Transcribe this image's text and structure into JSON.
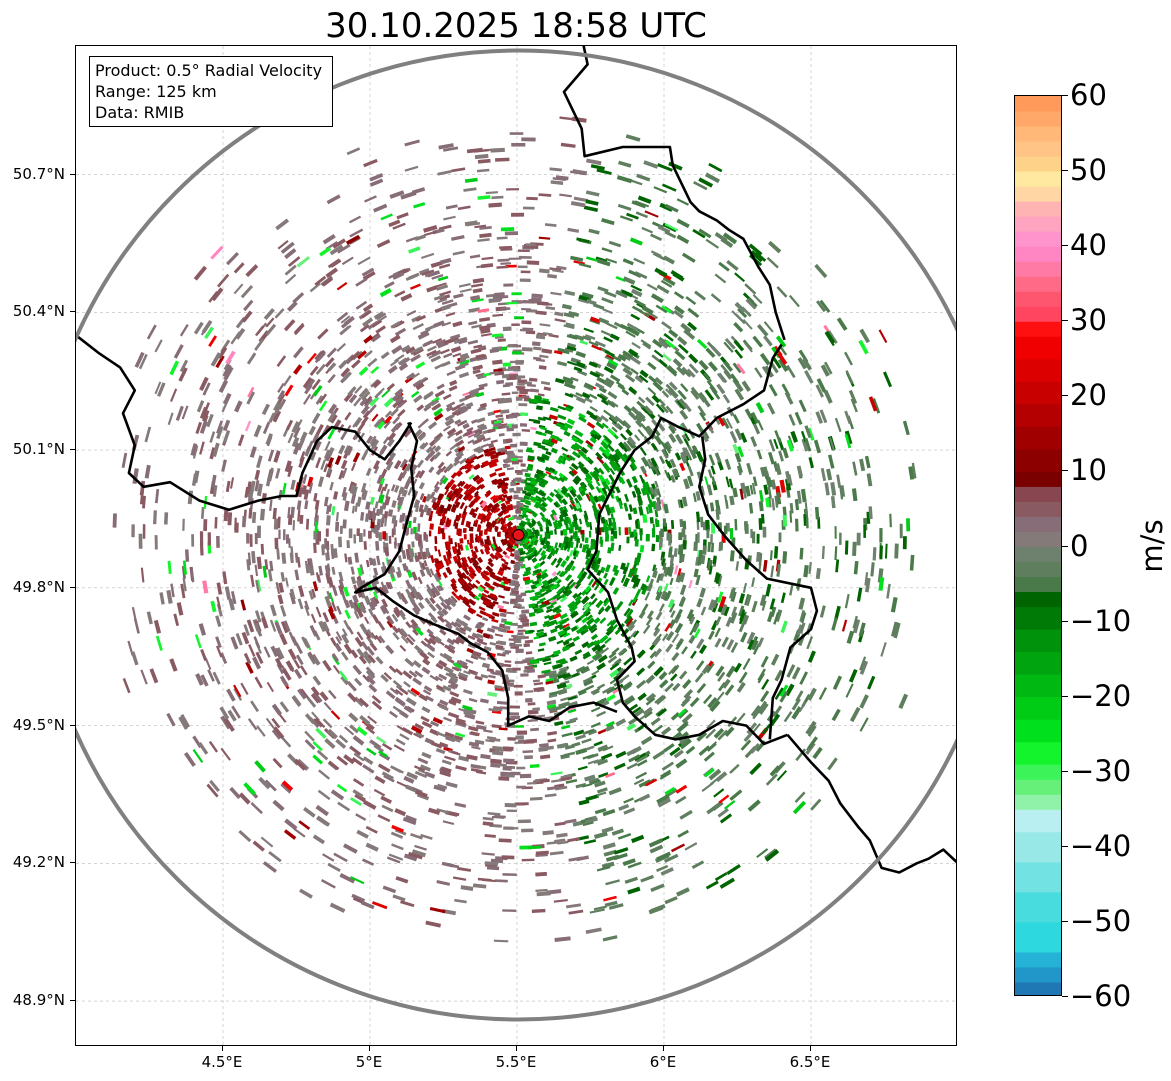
{
  "title": "30.10.2025 18:58 UTC",
  "info_box": {
    "product": "Product: 0.5° Radial Velocity",
    "range": "Range: 125 km",
    "data_source": "Data: RMIB"
  },
  "axes": {
    "lon_range": [
      4.0,
      7.0
    ],
    "lat_range": [
      48.8,
      50.98
    ],
    "lat_ticks": [
      {
        "value": 50.7,
        "label": "50.7°N"
      },
      {
        "value": 50.4,
        "label": "50.4°N"
      },
      {
        "value": 50.1,
        "label": "50.1°N"
      },
      {
        "value": 49.8,
        "label": "49.8°N"
      },
      {
        "value": 49.5,
        "label": "49.5°N"
      },
      {
        "value": 49.2,
        "label": "49.2°N"
      },
      {
        "value": 48.9,
        "label": "48.9°N"
      }
    ],
    "lon_ticks": [
      {
        "value": 4.5,
        "label": "4.5°E"
      },
      {
        "value": 5.0,
        "label": "5°E"
      },
      {
        "value": 5.5,
        "label": "5.5°E"
      },
      {
        "value": 6.0,
        "label": "6°E"
      },
      {
        "value": 6.5,
        "label": "6.5°E"
      }
    ]
  },
  "radar_site": {
    "lon": 5.505,
    "lat": 49.915,
    "color": "#e8141c"
  },
  "range_ring_color": "#808080",
  "colorbar": {
    "label": "m/s",
    "min": -60,
    "max": 60,
    "ticks": [
      {
        "value": 60,
        "label": "60"
      },
      {
        "value": 50,
        "label": "50"
      },
      {
        "value": 40,
        "label": "40"
      },
      {
        "value": 30,
        "label": "30"
      },
      {
        "value": 20,
        "label": "20"
      },
      {
        "value": 10,
        "label": "10"
      },
      {
        "value": 0,
        "label": "0"
      },
      {
        "value": -10,
        "label": "−10"
      },
      {
        "value": -20,
        "label": "−20"
      },
      {
        "value": -30,
        "label": "−30"
      },
      {
        "value": -40,
        "label": "−40"
      },
      {
        "value": -50,
        "label": "−50"
      },
      {
        "value": -60,
        "label": "−60"
      }
    ],
    "stops": [
      {
        "from": -60,
        "to": -58,
        "color": "#1f77b4"
      },
      {
        "from": -58,
        "to": -56,
        "color": "#2196c8"
      },
      {
        "from": -56,
        "to": -54,
        "color": "#24b2d6"
      },
      {
        "from": -54,
        "to": -50,
        "color": "#2dd9de"
      },
      {
        "from": -50,
        "to": -46,
        "color": "#48dcdf"
      },
      {
        "from": -46,
        "to": -42,
        "color": "#72e2e2"
      },
      {
        "from": -42,
        "to": -38,
        "color": "#98e8e8"
      },
      {
        "from": -38,
        "to": -35,
        "color": "#b9eff0"
      },
      {
        "from": -35,
        "to": -33,
        "color": "#8ff2a8"
      },
      {
        "from": -33,
        "to": -31,
        "color": "#66f07a"
      },
      {
        "from": -31,
        "to": -29,
        "color": "#3cf45a"
      },
      {
        "from": -29,
        "to": -26,
        "color": "#14f42c"
      },
      {
        "from": -26,
        "to": -23,
        "color": "#00e01c"
      },
      {
        "from": -23,
        "to": -20,
        "color": "#00cc16"
      },
      {
        "from": -20,
        "to": -17,
        "color": "#00b812"
      },
      {
        "from": -17,
        "to": -14,
        "color": "#00a40e"
      },
      {
        "from": -14,
        "to": -11,
        "color": "#00920a"
      },
      {
        "from": -11,
        "to": -8,
        "color": "#007a06"
      },
      {
        "from": -8,
        "to": -6,
        "color": "#006400"
      },
      {
        "from": -6,
        "to": -4,
        "color": "#4a7a4a"
      },
      {
        "from": -4,
        "to": -2,
        "color": "#5e7e5e"
      },
      {
        "from": -2,
        "to": 0,
        "color": "#6e806e"
      },
      {
        "from": 0,
        "to": 2,
        "color": "#857a7a"
      },
      {
        "from": 2,
        "to": 4,
        "color": "#866d77"
      },
      {
        "from": 4,
        "to": 6,
        "color": "#8a5a62"
      },
      {
        "from": 6,
        "to": 8,
        "color": "#884750"
      },
      {
        "from": 8,
        "to": 10,
        "color": "#7a0000"
      },
      {
        "from": 10,
        "to": 13,
        "color": "#8c0000"
      },
      {
        "from": 13,
        "to": 16,
        "color": "#a00000"
      },
      {
        "from": 16,
        "to": 19,
        "color": "#b40000"
      },
      {
        "from": 19,
        "to": 22,
        "color": "#c80000"
      },
      {
        "from": 22,
        "to": 25,
        "color": "#dc0000"
      },
      {
        "from": 25,
        "to": 28,
        "color": "#f00000"
      },
      {
        "from": 28,
        "to": 30,
        "color": "#ff1010"
      },
      {
        "from": 30,
        "to": 32,
        "color": "#ff4560"
      },
      {
        "from": 32,
        "to": 34,
        "color": "#ff5670"
      },
      {
        "from": 34,
        "to": 36,
        "color": "#ff6a86"
      },
      {
        "from": 36,
        "to": 38,
        "color": "#ff7aa4"
      },
      {
        "from": 38,
        "to": 40,
        "color": "#ff86c2"
      },
      {
        "from": 40,
        "to": 42,
        "color": "#ff94cc"
      },
      {
        "from": 42,
        "to": 44,
        "color": "#ffa4c0"
      },
      {
        "from": 44,
        "to": 46,
        "color": "#ffb4b4"
      },
      {
        "from": 46,
        "to": 48,
        "color": "#ffd6a4"
      },
      {
        "from": 48,
        "to": 50,
        "color": "#ffe8a0"
      },
      {
        "from": 50,
        "to": 52,
        "color": "#ffd28a"
      },
      {
        "from": 52,
        "to": 54,
        "color": "#ffc486"
      },
      {
        "from": 54,
        "to": 56,
        "color": "#ffb878"
      },
      {
        "from": 56,
        "to": 58,
        "color": "#ffa86a"
      },
      {
        "from": 58,
        "to": 60,
        "color": "#ff9a5a"
      }
    ]
  },
  "borders": [
    {
      "name": "belgium-luxembourg-border",
      "points": [
        [
          5.13,
          50.16
        ],
        [
          5.16,
          50.12
        ],
        [
          5.14,
          50.06
        ],
        [
          5.15,
          50.0
        ],
        [
          5.12,
          49.93
        ],
        [
          5.1,
          49.88
        ],
        [
          5.05,
          49.83
        ],
        [
          4.97,
          49.8
        ],
        [
          4.95,
          49.79
        ],
        [
          5.02,
          49.8
        ],
        [
          5.08,
          49.77
        ],
        [
          5.15,
          49.74
        ],
        [
          5.22,
          49.72
        ],
        [
          5.3,
          49.7
        ],
        [
          5.34,
          49.68
        ],
        [
          5.4,
          49.66
        ],
        [
          5.45,
          49.62
        ],
        [
          5.47,
          49.56
        ],
        [
          5.47,
          49.5
        ],
        [
          5.54,
          49.52
        ],
        [
          5.61,
          49.51
        ],
        [
          5.68,
          49.54
        ],
        [
          5.76,
          49.55
        ],
        [
          5.84,
          49.53
        ]
      ]
    },
    {
      "name": "belgium-germany-border",
      "points": [
        [
          6.4,
          50.33
        ],
        [
          6.37,
          50.3
        ],
        [
          6.34,
          50.23
        ],
        [
          6.27,
          50.2
        ],
        [
          6.18,
          50.17
        ],
        [
          6.12,
          50.13
        ],
        [
          6.05,
          50.15
        ],
        [
          5.99,
          50.17
        ],
        [
          5.96,
          50.13
        ],
        [
          5.9,
          50.1
        ],
        [
          5.85,
          50.05
        ],
        [
          5.78,
          49.96
        ],
        [
          5.77,
          49.88
        ],
        [
          5.74,
          49.84
        ],
        [
          5.81,
          49.79
        ],
        [
          5.84,
          49.73
        ],
        [
          5.89,
          49.67
        ],
        [
          5.9,
          49.64
        ],
        [
          5.84,
          49.6
        ],
        [
          5.86,
          49.55
        ],
        [
          5.9,
          49.52
        ],
        [
          5.97,
          49.48
        ],
        [
          6.04,
          49.47
        ],
        [
          6.12,
          49.48
        ],
        [
          6.2,
          49.51
        ],
        [
          6.28,
          49.5
        ],
        [
          6.34,
          49.46
        ],
        [
          6.42,
          49.48
        ]
      ]
    },
    {
      "name": "luxembourg-germany-border",
      "points": [
        [
          6.13,
          50.13
        ],
        [
          6.14,
          50.08
        ],
        [
          6.12,
          50.02
        ],
        [
          6.15,
          49.96
        ],
        [
          6.21,
          49.91
        ],
        [
          6.28,
          49.86
        ],
        [
          6.35,
          49.82
        ],
        [
          6.5,
          49.8
        ],
        [
          6.52,
          49.75
        ],
        [
          6.5,
          49.71
        ],
        [
          6.43,
          49.67
        ],
        [
          6.4,
          49.6
        ],
        [
          6.37,
          49.56
        ],
        [
          6.36,
          49.47
        ]
      ]
    },
    {
      "name": "belgium-france-border-west",
      "points": [
        [
          4.0,
          50.35
        ],
        [
          4.08,
          50.31
        ],
        [
          4.15,
          50.28
        ],
        [
          4.2,
          50.23
        ],
        [
          4.16,
          50.18
        ],
        [
          4.2,
          50.11
        ],
        [
          4.18,
          50.05
        ],
        [
          4.23,
          50.02
        ],
        [
          4.32,
          50.03
        ],
        [
          4.42,
          49.99
        ],
        [
          4.52,
          49.97
        ],
        [
          4.62,
          49.99
        ],
        [
          4.7,
          50.0
        ],
        [
          4.75,
          50.0
        ],
        [
          4.77,
          50.05
        ],
        [
          4.82,
          50.12
        ],
        [
          4.87,
          50.15
        ],
        [
          4.95,
          50.14
        ],
        [
          5.0,
          50.1
        ],
        [
          5.05,
          50.08
        ],
        [
          5.1,
          50.12
        ],
        [
          5.14,
          50.16
        ]
      ]
    },
    {
      "name": "netherlands-belgium-border-north",
      "points": [
        [
          5.72,
          51.0
        ],
        [
          5.74,
          50.94
        ],
        [
          5.66,
          50.88
        ],
        [
          5.72,
          50.8
        ],
        [
          5.73,
          50.74
        ],
        [
          5.86,
          50.76
        ],
        [
          6.02,
          50.76
        ],
        [
          6.03,
          50.72
        ],
        [
          6.09,
          50.64
        ],
        [
          6.12,
          50.62
        ],
        [
          6.18,
          50.6
        ],
        [
          6.22,
          50.58
        ],
        [
          6.27,
          50.56
        ],
        [
          6.32,
          50.5
        ],
        [
          6.36,
          50.46
        ],
        [
          6.38,
          50.4
        ],
        [
          6.41,
          50.34
        ]
      ]
    },
    {
      "name": "france-germany-border-east",
      "points": [
        [
          6.42,
          49.48
        ],
        [
          6.5,
          49.42
        ],
        [
          6.56,
          49.38
        ],
        [
          6.6,
          49.33
        ],
        [
          6.66,
          49.28
        ],
        [
          6.7,
          49.25
        ],
        [
          6.74,
          49.19
        ],
        [
          6.8,
          49.18
        ],
        [
          6.86,
          49.2
        ],
        [
          6.9,
          49.21
        ],
        [
          6.95,
          49.23
        ],
        [
          7.0,
          49.2
        ]
      ]
    }
  ]
}
